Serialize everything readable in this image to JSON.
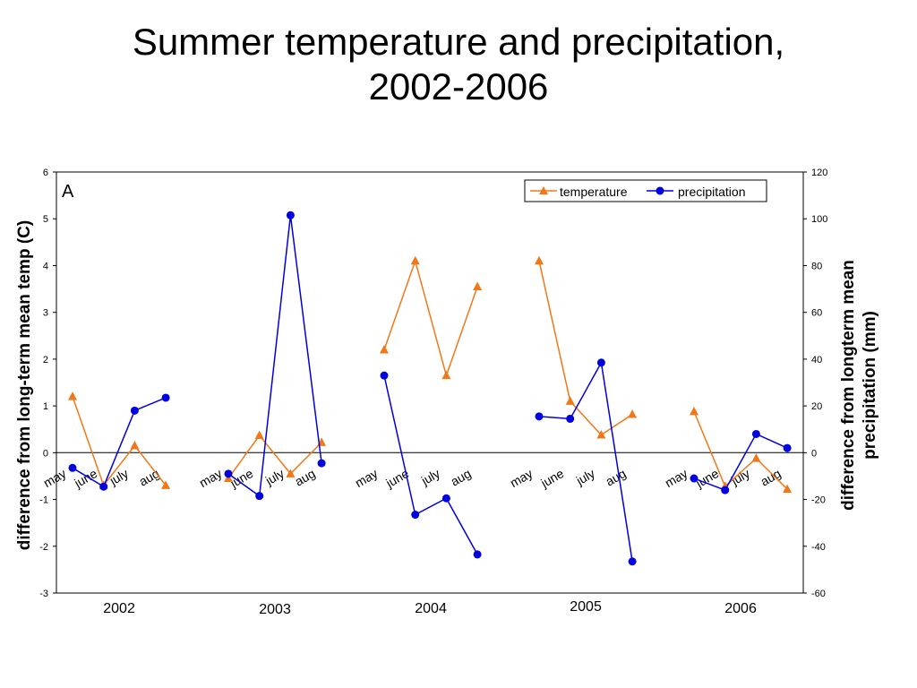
{
  "title_line1": "Summer temperature and precipitation,",
  "title_line2": "2002-2006",
  "chart_data": {
    "type": "line",
    "panel_label": "A",
    "ylabel_left": "difference from long-term mean temp (C)",
    "ylabel_right": "difference from longterm mean precipitation (mm)",
    "ylim_left": [
      -3,
      6
    ],
    "ylim_right": [
      -60,
      120
    ],
    "yticks_left": [
      "-3",
      "-2",
      "-1",
      "0",
      "1",
      "2",
      "3",
      "4",
      "5",
      "6"
    ],
    "yticks_right": [
      "-60",
      "-40",
      "-20",
      "0",
      "20",
      "40",
      "60",
      "80",
      "100",
      "120"
    ],
    "month_labels": [
      "may",
      "june",
      "july",
      "aug"
    ],
    "years": [
      "2002",
      "2003",
      "2004",
      "2005",
      "2006"
    ],
    "legend_position": "top-right",
    "grid": false,
    "series": [
      {
        "name": "temperature",
        "axis": "left",
        "color": "#f07818",
        "marker": "triangle",
        "values": [
          [
            1.2,
            -0.7,
            0.15,
            -0.7
          ],
          [
            -0.55,
            0.37,
            -0.45,
            0.22
          ],
          [
            2.2,
            4.1,
            1.65,
            3.55
          ],
          [
            4.1,
            1.1,
            0.38,
            0.82
          ],
          [
            0.88,
            -0.72,
            -0.12,
            -0.78
          ]
        ]
      },
      {
        "name": "precipitation",
        "axis": "right",
        "color": "#0000e0",
        "marker": "circle",
        "values": [
          [
            -6.5,
            -14.5,
            18,
            23.5
          ],
          [
            -9,
            -18.5,
            101.5,
            -4.5
          ],
          [
            33,
            -26.5,
            -19.5,
            -43.5
          ],
          [
            15.5,
            14.5,
            38.5,
            -46.5
          ],
          [
            -11,
            -16,
            8,
            2
          ]
        ]
      }
    ]
  }
}
